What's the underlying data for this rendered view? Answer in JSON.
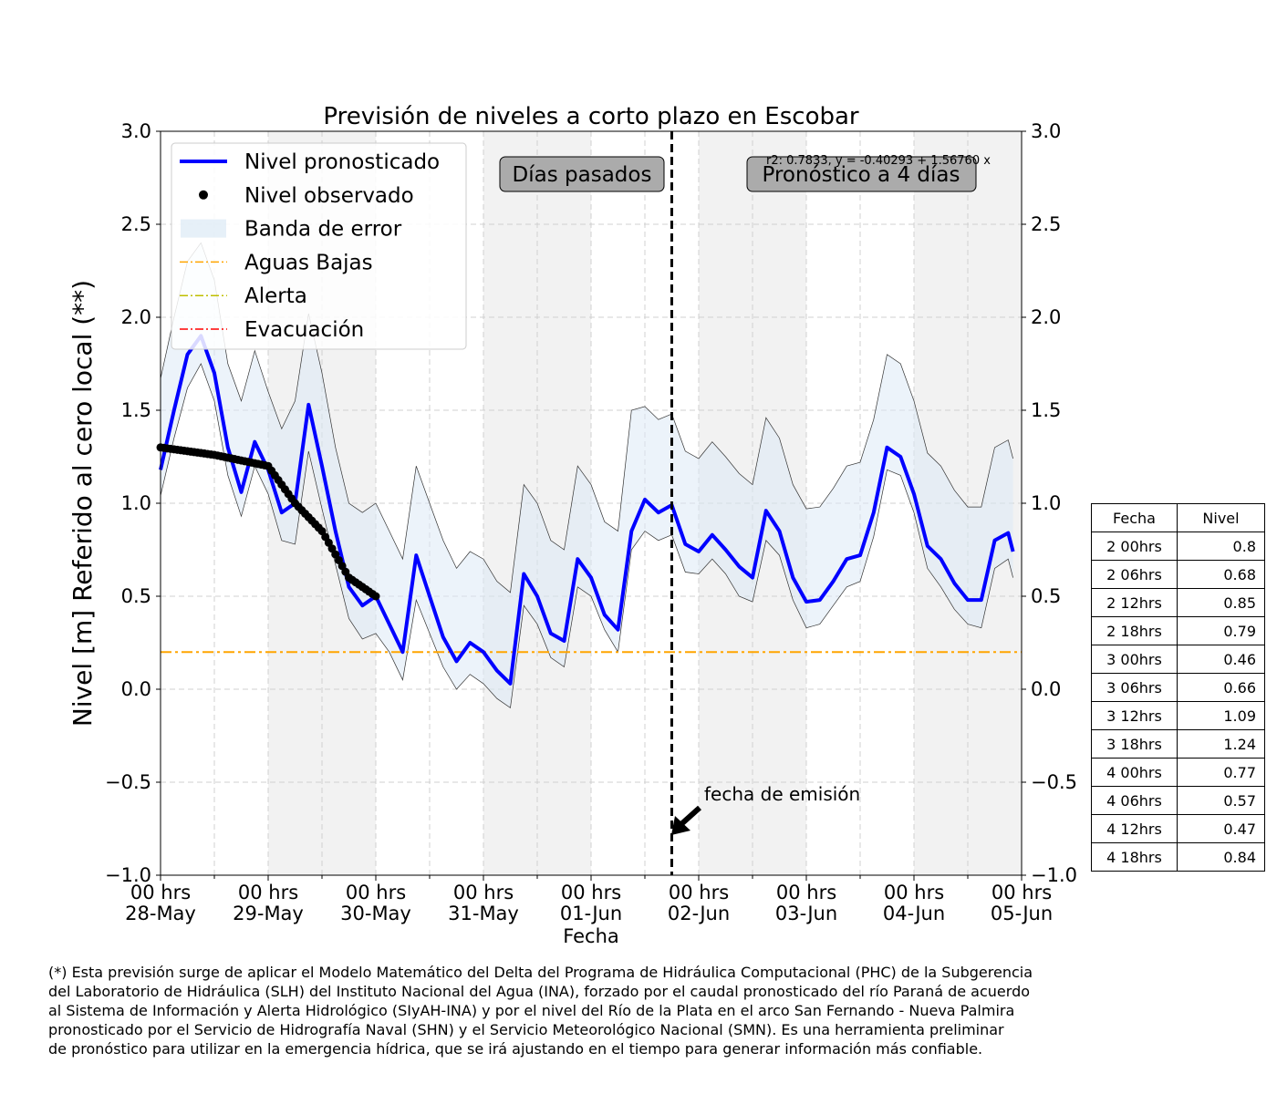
{
  "chart_data": {
    "type": "line",
    "title": "Previsión de niveles a corto plazo en Escobar",
    "xlabel": "Fecha",
    "ylabel": "Nivel [m] Referido al cero local (**)",
    "ylim": [
      -1.0,
      3.0
    ],
    "y_ticks": [
      "3.0",
      "2.5",
      "2.0",
      "1.5",
      "1.0",
      "0.5",
      "0.0",
      "−0.5",
      "−1.0"
    ],
    "x_range_days": [
      0,
      8
    ],
    "x_ticks": [
      {
        "line1": "00 hrs",
        "line2": "28-May"
      },
      {
        "line1": "00 hrs",
        "line2": "29-May"
      },
      {
        "line1": "00 hrs",
        "line2": "30-May"
      },
      {
        "line1": "00 hrs",
        "line2": "31-May"
      },
      {
        "line1": "00 hrs",
        "line2": "01-Jun"
      },
      {
        "line1": "00 hrs",
        "line2": "02-Jun"
      },
      {
        "line1": "00 hrs",
        "line2": "03-Jun"
      },
      {
        "line1": "00 hrs",
        "line2": "04-Jun"
      },
      {
        "line1": "00 hrs",
        "line2": "05-Jun"
      }
    ],
    "grid": true,
    "legend_position": "top-left",
    "emission_day": 4.75,
    "thresholds": [
      {
        "name": "Aguas Bajas",
        "value": 0.2,
        "color": "#ffa500"
      }
    ],
    "series": [
      {
        "name": "Nivel pronosticado",
        "color": "#0000ff",
        "x": [
          0.0,
          0.125,
          0.25,
          0.375,
          0.5,
          0.625,
          0.75,
          0.875,
          1.0,
          1.125,
          1.25,
          1.375,
          1.5,
          1.625,
          1.75,
          1.875,
          2.0,
          2.125,
          2.25,
          2.375,
          2.5,
          2.625,
          2.75,
          2.875,
          3.0,
          3.125,
          3.25,
          3.375,
          3.5,
          3.625,
          3.75,
          3.875,
          4.0,
          4.125,
          4.25,
          4.375,
          4.5,
          4.625,
          4.75,
          4.875,
          5.0,
          5.125,
          5.25,
          5.375,
          5.5,
          5.625,
          5.75,
          5.875,
          6.0,
          6.125,
          6.25,
          6.375,
          6.5,
          6.625,
          6.75,
          6.875,
          7.0,
          7.125,
          7.25,
          7.375,
          7.5,
          7.625,
          7.75,
          7.875,
          7.92
        ],
        "values": [
          1.18,
          1.5,
          1.8,
          1.9,
          1.7,
          1.3,
          1.06,
          1.33,
          1.18,
          0.95,
          1.0,
          1.53,
          1.2,
          0.85,
          0.55,
          0.45,
          0.5,
          0.35,
          0.2,
          0.72,
          0.5,
          0.28,
          0.15,
          0.25,
          0.2,
          0.1,
          0.03,
          0.62,
          0.5,
          0.3,
          0.26,
          0.7,
          0.6,
          0.4,
          0.32,
          0.85,
          1.02,
          0.95,
          0.99,
          0.78,
          0.74,
          0.83,
          0.75,
          0.66,
          0.6,
          0.96,
          0.85,
          0.6,
          0.47,
          0.48,
          0.58,
          0.7,
          0.72,
          0.95,
          1.3,
          1.25,
          1.05,
          0.77,
          0.7,
          0.57,
          0.48,
          0.48,
          0.8,
          0.84,
          0.74
        ]
      },
      {
        "name": "Nivel observado",
        "color": "#000000",
        "x": [
          0.0,
          0.25,
          0.5,
          0.75,
          1.0,
          1.25,
          1.5,
          1.75,
          2.0
        ],
        "values": [
          1.3,
          1.28,
          1.26,
          1.23,
          1.2,
          1.0,
          0.85,
          0.6,
          0.5
        ]
      }
    ],
    "error_band": {
      "name": "Banda de error",
      "color": "#dce9f5",
      "x": [
        0.0,
        0.125,
        0.25,
        0.375,
        0.5,
        0.625,
        0.75,
        0.875,
        1.0,
        1.125,
        1.25,
        1.375,
        1.5,
        1.625,
        1.75,
        1.875,
        2.0,
        2.125,
        2.25,
        2.375,
        2.5,
        2.625,
        2.75,
        2.875,
        3.0,
        3.125,
        3.25,
        3.375,
        3.5,
        3.625,
        3.75,
        3.875,
        4.0,
        4.125,
        4.25,
        4.375,
        4.5,
        4.625,
        4.75,
        4.875,
        5.0,
        5.125,
        5.25,
        5.375,
        5.5,
        5.625,
        5.75,
        5.875,
        6.0,
        6.125,
        6.25,
        6.375,
        6.5,
        6.625,
        6.75,
        6.875,
        7.0,
        7.125,
        7.25,
        7.375,
        7.5,
        7.625,
        7.75,
        7.875,
        7.92
      ],
      "upper": [
        1.67,
        2.0,
        2.3,
        2.4,
        2.2,
        1.75,
        1.55,
        1.82,
        1.6,
        1.4,
        1.55,
        2.02,
        1.7,
        1.3,
        1.0,
        0.95,
        1.0,
        0.85,
        0.7,
        1.2,
        1.0,
        0.8,
        0.65,
        0.74,
        0.7,
        0.58,
        0.52,
        1.1,
        1.0,
        0.8,
        0.75,
        1.2,
        1.1,
        0.9,
        0.85,
        1.5,
        1.52,
        1.45,
        1.48,
        1.28,
        1.24,
        1.33,
        1.25,
        1.16,
        1.1,
        1.46,
        1.35,
        1.1,
        0.97,
        0.98,
        1.08,
        1.2,
        1.22,
        1.45,
        1.8,
        1.75,
        1.55,
        1.27,
        1.2,
        1.07,
        0.98,
        0.98,
        1.3,
        1.34,
        1.24
      ],
      "lower": [
        1.04,
        1.35,
        1.62,
        1.75,
        1.55,
        1.15,
        0.93,
        1.2,
        1.05,
        0.8,
        0.78,
        1.28,
        0.97,
        0.67,
        0.38,
        0.27,
        0.3,
        0.2,
        0.05,
        0.48,
        0.3,
        0.12,
        0.0,
        0.08,
        0.03,
        -0.05,
        -0.1,
        0.45,
        0.35,
        0.17,
        0.12,
        0.55,
        0.5,
        0.32,
        0.2,
        0.75,
        0.85,
        0.8,
        0.83,
        0.63,
        0.62,
        0.7,
        0.62,
        0.5,
        0.47,
        0.8,
        0.72,
        0.48,
        0.33,
        0.35,
        0.45,
        0.55,
        0.58,
        0.82,
        1.18,
        1.15,
        0.95,
        0.65,
        0.55,
        0.43,
        0.35,
        0.33,
        0.65,
        0.7,
        0.6
      ]
    },
    "legend": [
      {
        "label": "Nivel pronosticado",
        "kind": "line",
        "color": "#0000ff"
      },
      {
        "label": "Nivel observado",
        "kind": "dot",
        "color": "#000000"
      },
      {
        "label": "Banda de error",
        "kind": "band",
        "color": "#dce9f5"
      },
      {
        "label": "Aguas Bajas",
        "kind": "dashdot",
        "color": "#ffa500"
      },
      {
        "label": "Alerta",
        "kind": "dashdot",
        "color": "#bfbf00"
      },
      {
        "label": "Evacuación",
        "kind": "dashdot",
        "color": "#ff0000"
      }
    ],
    "annotations": {
      "past_days": "Días pasados",
      "forecast_days": "Pronóstico a 4 días",
      "regression": "r2: 0.7833, y = -0.40293 + 1.56760 x",
      "emission": "fecha de emisión"
    }
  },
  "table": {
    "headers": [
      "Fecha",
      "Nivel"
    ],
    "rows": [
      [
        "2 00hrs",
        "0.8"
      ],
      [
        "2 06hrs",
        "0.68"
      ],
      [
        "2 12hrs",
        "0.85"
      ],
      [
        "2 18hrs",
        "0.79"
      ],
      [
        "3 00hrs",
        "0.46"
      ],
      [
        "3 06hrs",
        "0.66"
      ],
      [
        "3 12hrs",
        "1.09"
      ],
      [
        "3 18hrs",
        "1.24"
      ],
      [
        "4 00hrs",
        "0.77"
      ],
      [
        "4 06hrs",
        "0.57"
      ],
      [
        "4 12hrs",
        "0.47"
      ],
      [
        "4 18hrs",
        "0.84"
      ]
    ]
  },
  "footnote": [
    "(*) Esta previsión surge de aplicar el Modelo Matemático del Delta del Programa de Hidráulica Computacional (PHC) de la Subgerencia",
    "del Laboratorio de Hidráulica (SLH) del Instituto Nacional del Agua (INA), forzado por el caudal pronosticado del río Paraná de acuerdo",
    "al Sistema de Información y Alerta Hidrológico (SIyAH-INA) y por el nivel del Río de la Plata en el arco San Fernando - Nueva Palmira",
    "pronosticado por el Servicio de Hidrografía Naval (SHN) y el Servicio Meteorológico Nacional (SMN). Es una herramienta preliminar",
    "de pronóstico para utilizar en la emergencia hídrica, que se irá ajustando en el tiempo para generar información más confiable."
  ]
}
